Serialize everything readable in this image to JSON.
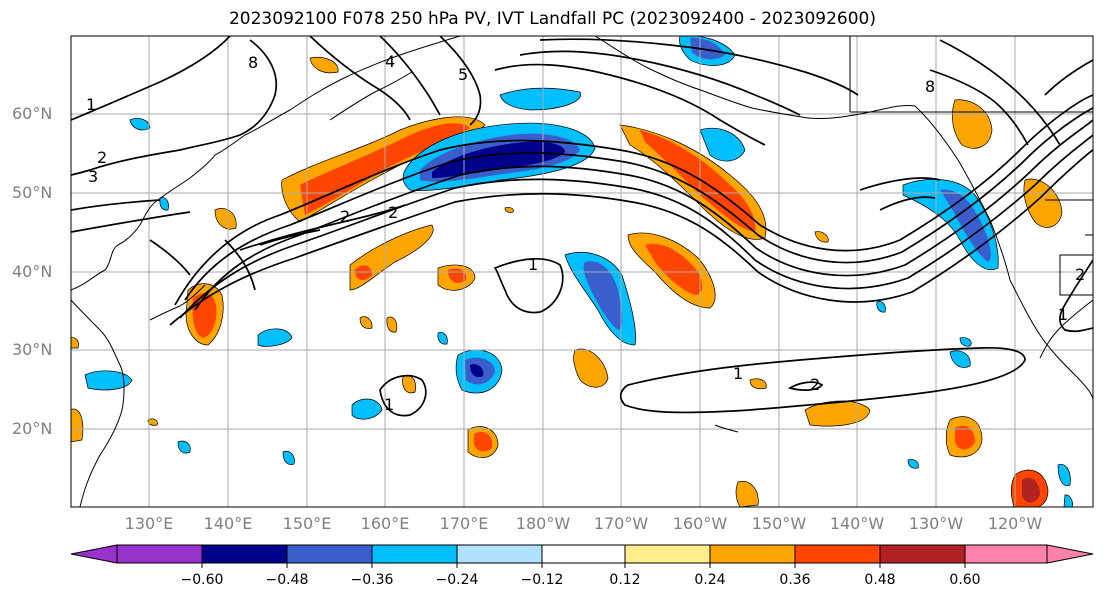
{
  "title": "2023092100 F078 250 hPa PV, IVT Landfall PC (2023092400 - 2023092600)",
  "lat_labels": [
    "60°N",
    "50°N",
    "40°N",
    "30°N",
    "20°N"
  ],
  "lon_labels": [
    "130°E",
    "140°E",
    "150°E",
    "160°E",
    "170°E",
    "180°W",
    "170°W",
    "160°W",
    "150°W",
    "140°W",
    "130°W",
    "120°W"
  ],
  "contour_labels": [
    "8",
    "4",
    "5",
    "1",
    "2",
    "3",
    "2",
    "1",
    "2",
    "1",
    "1",
    "2",
    "8",
    "1",
    "2"
  ],
  "colorbar": {
    "tick_labels": [
      "−0.60",
      "−0.48",
      "−0.36",
      "−0.24",
      "−0.12",
      "0.12",
      "0.24",
      "0.36",
      "0.48",
      "0.60"
    ],
    "colors": [
      "#9932cc",
      "#00008b",
      "#3a5fcd",
      "#00bfff",
      "#b0e2ff",
      "#ffffff",
      "#ffec8b",
      "#ffa500",
      "#ff4500",
      "#b22222",
      "#ff82ab"
    ]
  }
}
